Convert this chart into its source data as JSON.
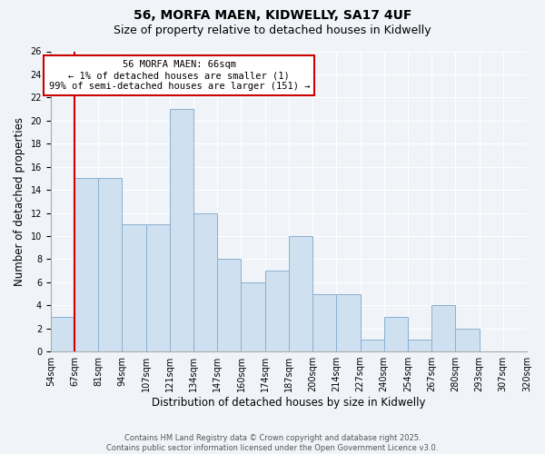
{
  "title": "56, MORFA MAEN, KIDWELLY, SA17 4UF",
  "subtitle": "Size of property relative to detached houses in Kidwelly",
  "xlabel": "Distribution of detached houses by size in Kidwelly",
  "ylabel": "Number of detached properties",
  "bar_color": "#cfe0f0",
  "bar_edge_color": "#8ab0d0",
  "bin_labels": [
    "54sqm",
    "67sqm",
    "81sqm",
    "94sqm",
    "107sqm",
    "121sqm",
    "134sqm",
    "147sqm",
    "160sqm",
    "174sqm",
    "187sqm",
    "200sqm",
    "214sqm",
    "227sqm",
    "240sqm",
    "254sqm",
    "267sqm",
    "280sqm",
    "293sqm",
    "307sqm",
    "320sqm"
  ],
  "bar_values": [
    3,
    15,
    15,
    11,
    11,
    21,
    12,
    8,
    6,
    7,
    10,
    5,
    5,
    1,
    3,
    1,
    4,
    2,
    0,
    0
  ],
  "ylim": [
    0,
    26
  ],
  "yticks": [
    0,
    2,
    4,
    6,
    8,
    10,
    12,
    14,
    16,
    18,
    20,
    22,
    24,
    26
  ],
  "marker_color": "#cc0000",
  "annotation_title": "56 MORFA MAEN: 66sqm",
  "annotation_line1": "← 1% of detached houses are smaller (1)",
  "annotation_line2": "99% of semi-detached houses are larger (151) →",
  "footnote1": "Contains HM Land Registry data © Crown copyright and database right 2025.",
  "footnote2": "Contains public sector information licensed under the Open Government Licence v3.0.",
  "background_color": "#f0f4f8",
  "grid_color": "#ffffff",
  "title_fontsize": 10,
  "subtitle_fontsize": 9,
  "axis_label_fontsize": 8.5,
  "tick_fontsize": 7,
  "footnote_fontsize": 6,
  "ann_fontsize": 7.5
}
